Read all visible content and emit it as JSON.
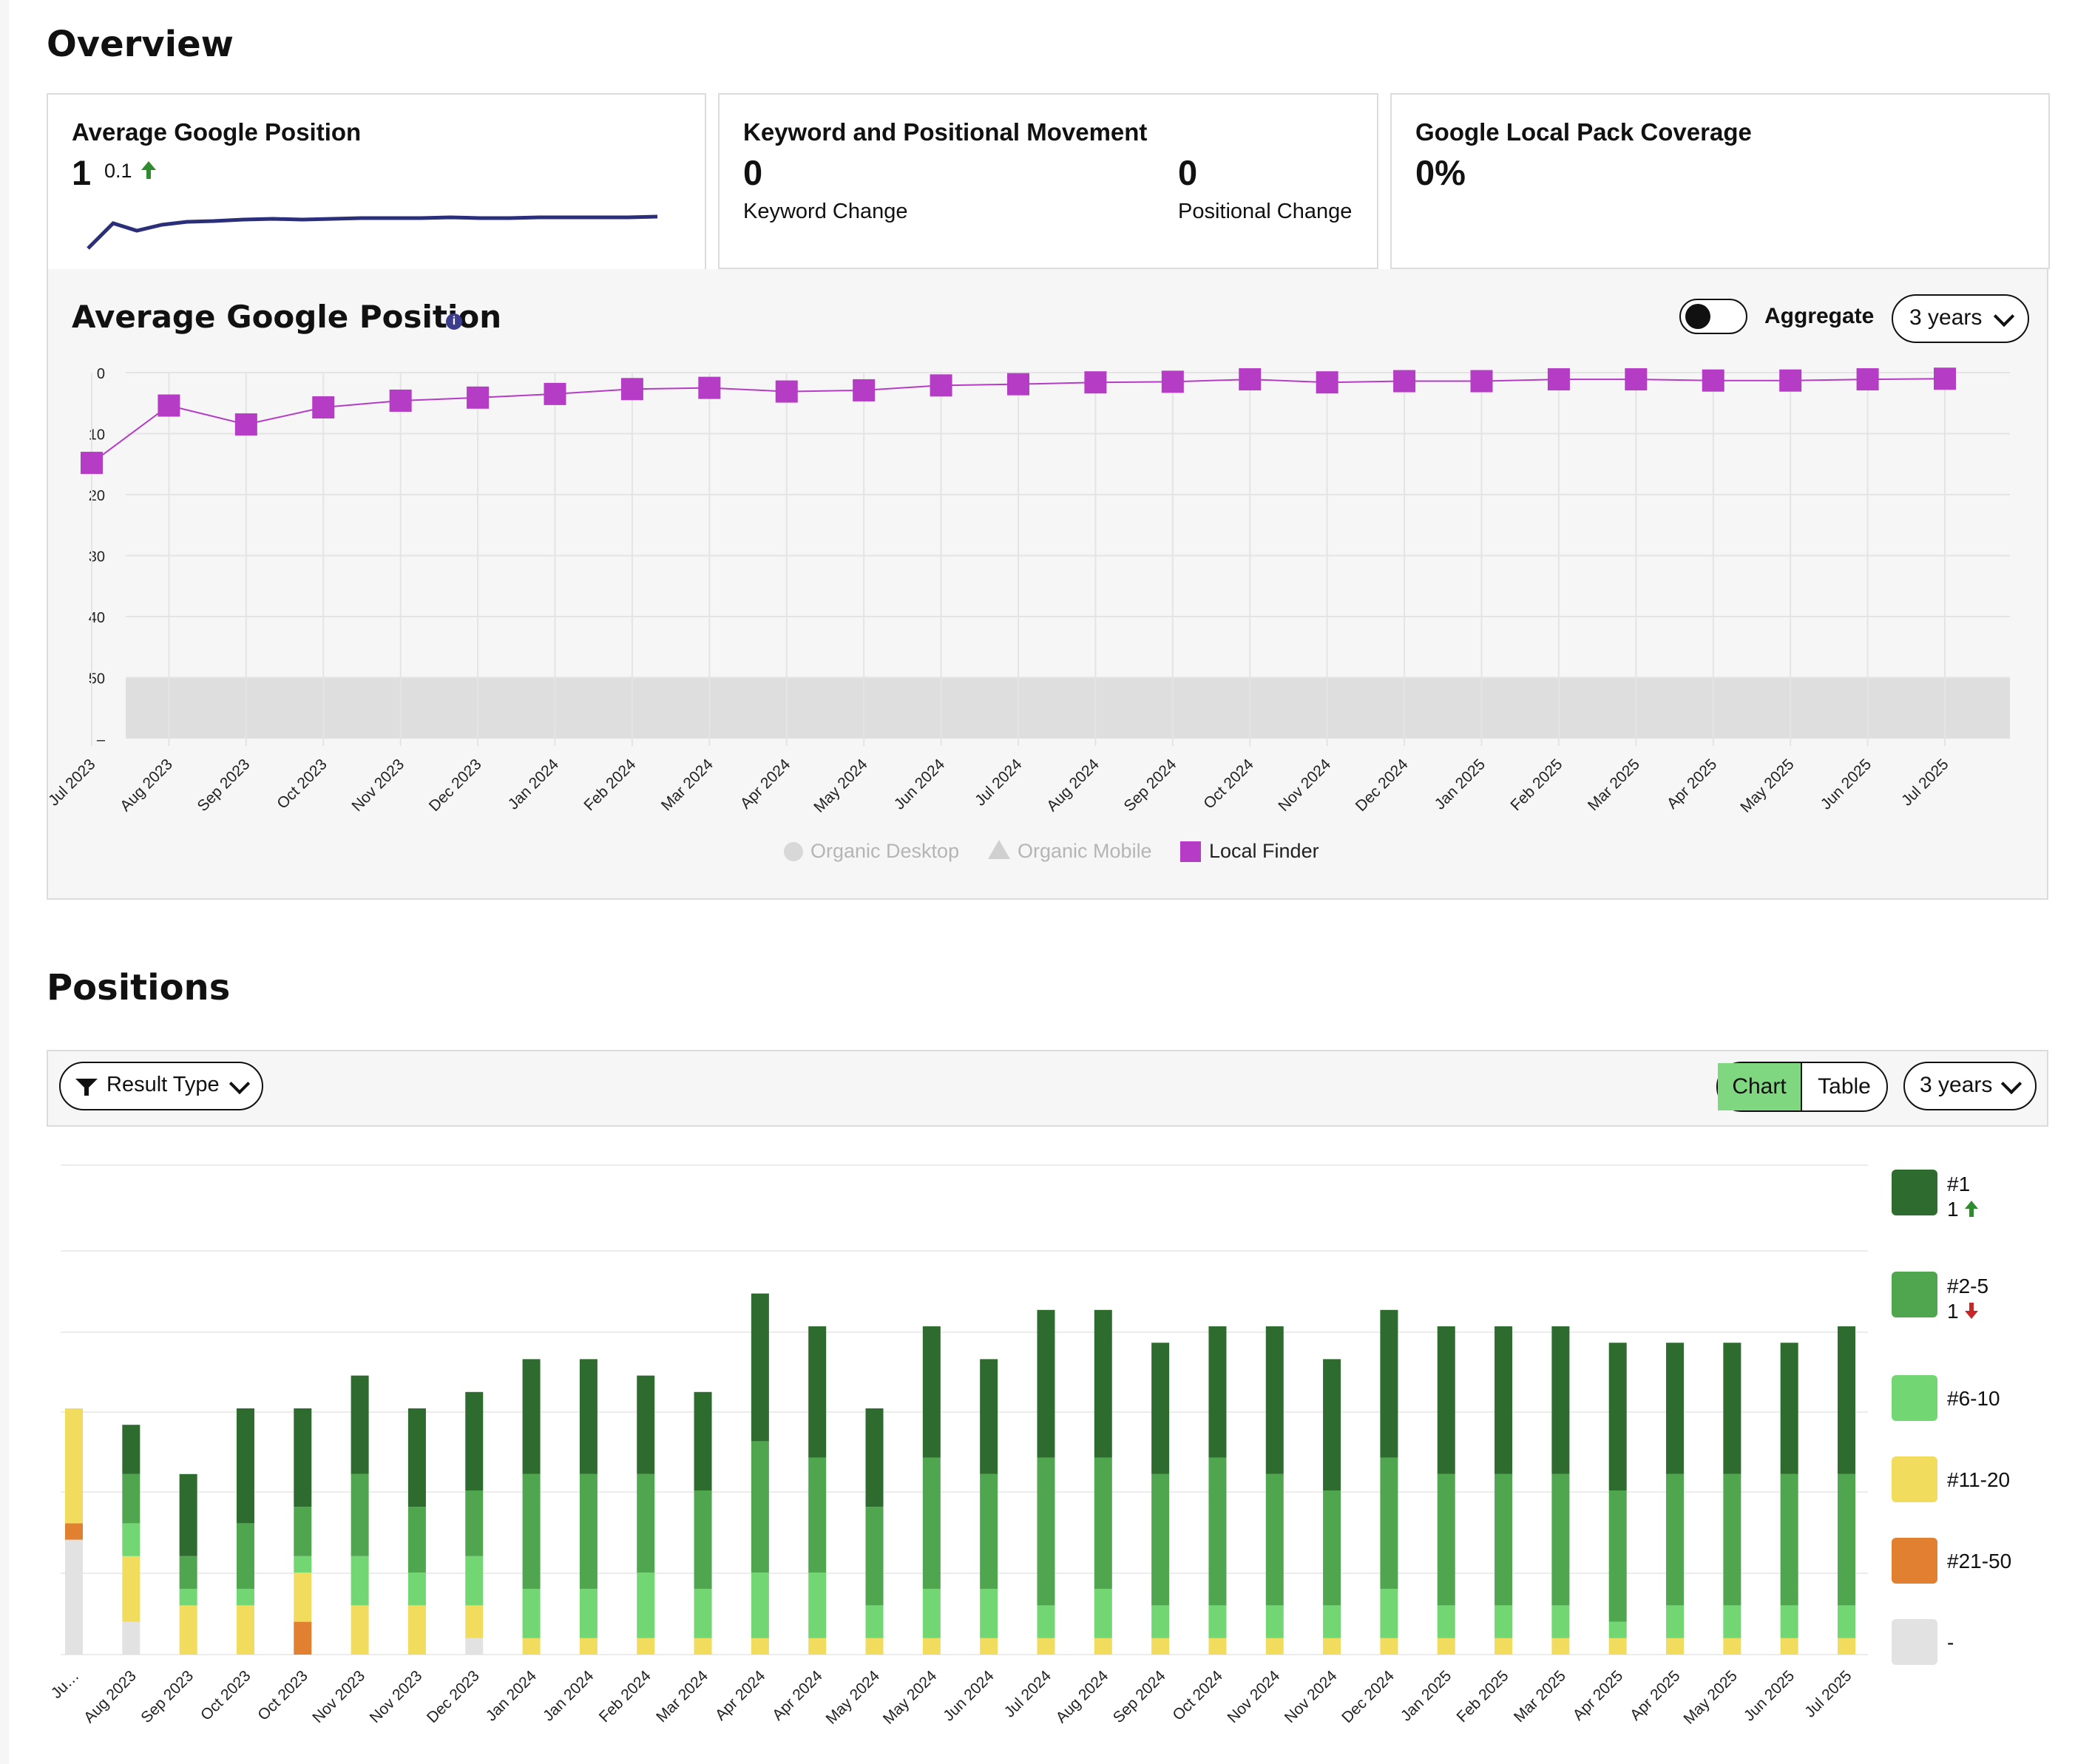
{
  "overview": {
    "title": "Overview",
    "card1": {
      "title": "Average Google Position",
      "value": "1",
      "delta": "0.1"
    },
    "card2": {
      "title": "Keyword and Positional Movement",
      "keyword_value": "0",
      "keyword_label": "Keyword Change",
      "positional_value": "0",
      "positional_label": "Positional Change"
    },
    "card3": {
      "title": "Google Local Pack Coverage",
      "value": "0%"
    },
    "panel_title": "Average Google Position",
    "aggregate_label": "Aggregate",
    "range_label": "3 years",
    "legend": [
      "Organic Desktop",
      "Organic Mobile",
      "Local Finder"
    ]
  },
  "positions": {
    "title": "Positions",
    "filter_label": "Result Type",
    "chart_label": "Chart",
    "table_label": "Table",
    "range_label": "3 years",
    "legend": [
      {
        "label": "#1",
        "count": "1",
        "trend": "up",
        "color": "#2e6b2e"
      },
      {
        "label": "#2-5",
        "count": "1",
        "trend": "down",
        "color": "#4fa64f"
      },
      {
        "label": "#6-10",
        "color": "#72d672"
      },
      {
        "label": "#11-20",
        "color": "#f2dc5d"
      },
      {
        "label": "#21-50",
        "color": "#e08030"
      },
      {
        "label": "-",
        "color": "#e2e2e2"
      }
    ]
  },
  "chart_data": [
    {
      "type": "line",
      "title": "Average Google Position",
      "x": [
        "Jul 2023",
        "Aug 2023",
        "Sep 2023",
        "Oct 2023",
        "Nov 2023",
        "Dec 2023",
        "Jan 2024",
        "Feb 2024",
        "Mar 2024",
        "Apr 2024",
        "May 2024",
        "Jun 2024",
        "Jul 2024",
        "Aug 2024",
        "Sep 2024",
        "Oct 2024",
        "Nov 2024",
        "Dec 2024",
        "Jan 2025",
        "Feb 2025",
        "Mar 2025",
        "Apr 2025",
        "May 2025",
        "Jun 2025",
        "Jul 2025"
      ],
      "yticks": [
        "0",
        "10",
        "20",
        "30",
        "40",
        "50",
        "–"
      ],
      "y_reversed": true,
      "ylim": [
        0,
        60
      ],
      "series": [
        {
          "name": "Local Finder",
          "color": "#b53cc4",
          "values": [
            14.8,
            5.4,
            8.5,
            5.7,
            4.6,
            4.1,
            3.5,
            2.7,
            2.5,
            3.1,
            2.9,
            2.1,
            1.9,
            1.6,
            1.5,
            1.1,
            1.6,
            1.4,
            1.4,
            1.1,
            1.1,
            1.3,
            1.3,
            1.1,
            1.0
          ]
        }
      ],
      "grid": true
    },
    {
      "type": "bar",
      "stacked": true,
      "categories": [
        "Ju…",
        "Aug 2023",
        "Sep 2023",
        "Oct 2023",
        "Oct 2023",
        "Nov 2023",
        "Nov 2023",
        "Dec 2023",
        "Jan 2024",
        "Jan 2024",
        "Feb 2024",
        "Mar 2024",
        "Apr 2024",
        "Apr 2024",
        "May 2024",
        "May 2024",
        "Jun 2024",
        "Jul 2024",
        "Aug 2024",
        "Sep 2024",
        "Oct 2024",
        "Nov 2024",
        "Nov 2024",
        "Dec 2024",
        "Jan 2025",
        "Feb 2025",
        "Mar 2025",
        "Apr 2025",
        "Apr 2025",
        "May 2025",
        "Jun 2025",
        "Jul 2025"
      ],
      "series": [
        {
          "name": "#1",
          "values": [
            0,
            3,
            5,
            7,
            6,
            6,
            6,
            6,
            7,
            7,
            6,
            6,
            9,
            8,
            6,
            8,
            7,
            9,
            9,
            8,
            8,
            9,
            8,
            9,
            9,
            9,
            9,
            9,
            8,
            8,
            8,
            9
          ]
        },
        {
          "name": "#2-5",
          "values": [
            0,
            3,
            2,
            4,
            3,
            5,
            4,
            4,
            7,
            7,
            6,
            6,
            8,
            7,
            6,
            8,
            7,
            9,
            8,
            8,
            9,
            8,
            7,
            8,
            8,
            8,
            8,
            8,
            8,
            8,
            8,
            8
          ]
        },
        {
          "name": "#6-10",
          "values": [
            0,
            2,
            1,
            1,
            1,
            3,
            2,
            3,
            3,
            3,
            4,
            3,
            4,
            4,
            2,
            3,
            3,
            2,
            3,
            2,
            2,
            2,
            2,
            3,
            2,
            2,
            2,
            1,
            2,
            2,
            2,
            2
          ]
        },
        {
          "name": "#11-20",
          "values": [
            7,
            4,
            3,
            3,
            3,
            3,
            3,
            2,
            1,
            1,
            1,
            1,
            1,
            1,
            1,
            1,
            1,
            1,
            1,
            1,
            1,
            1,
            1,
            1,
            1,
            1,
            1,
            1,
            1,
            1,
            1,
            1
          ]
        },
        {
          "name": "#21-50",
          "values": [
            1,
            0,
            0,
            0,
            2,
            0,
            0,
            0,
            0,
            0,
            0,
            0,
            0,
            0,
            0,
            0,
            0,
            0,
            0,
            0,
            0,
            0,
            0,
            0,
            0,
            0,
            0,
            0,
            0,
            0,
            0,
            0
          ]
        },
        {
          "name": "-",
          "values": [
            7,
            2,
            0,
            0,
            0,
            0,
            0,
            1,
            0,
            0,
            0,
            0,
            0,
            0,
            0,
            0,
            0,
            0,
            0,
            0,
            0,
            0,
            0,
            0,
            0,
            0,
            0,
            0,
            0,
            0,
            0,
            0
          ]
        }
      ]
    }
  ]
}
